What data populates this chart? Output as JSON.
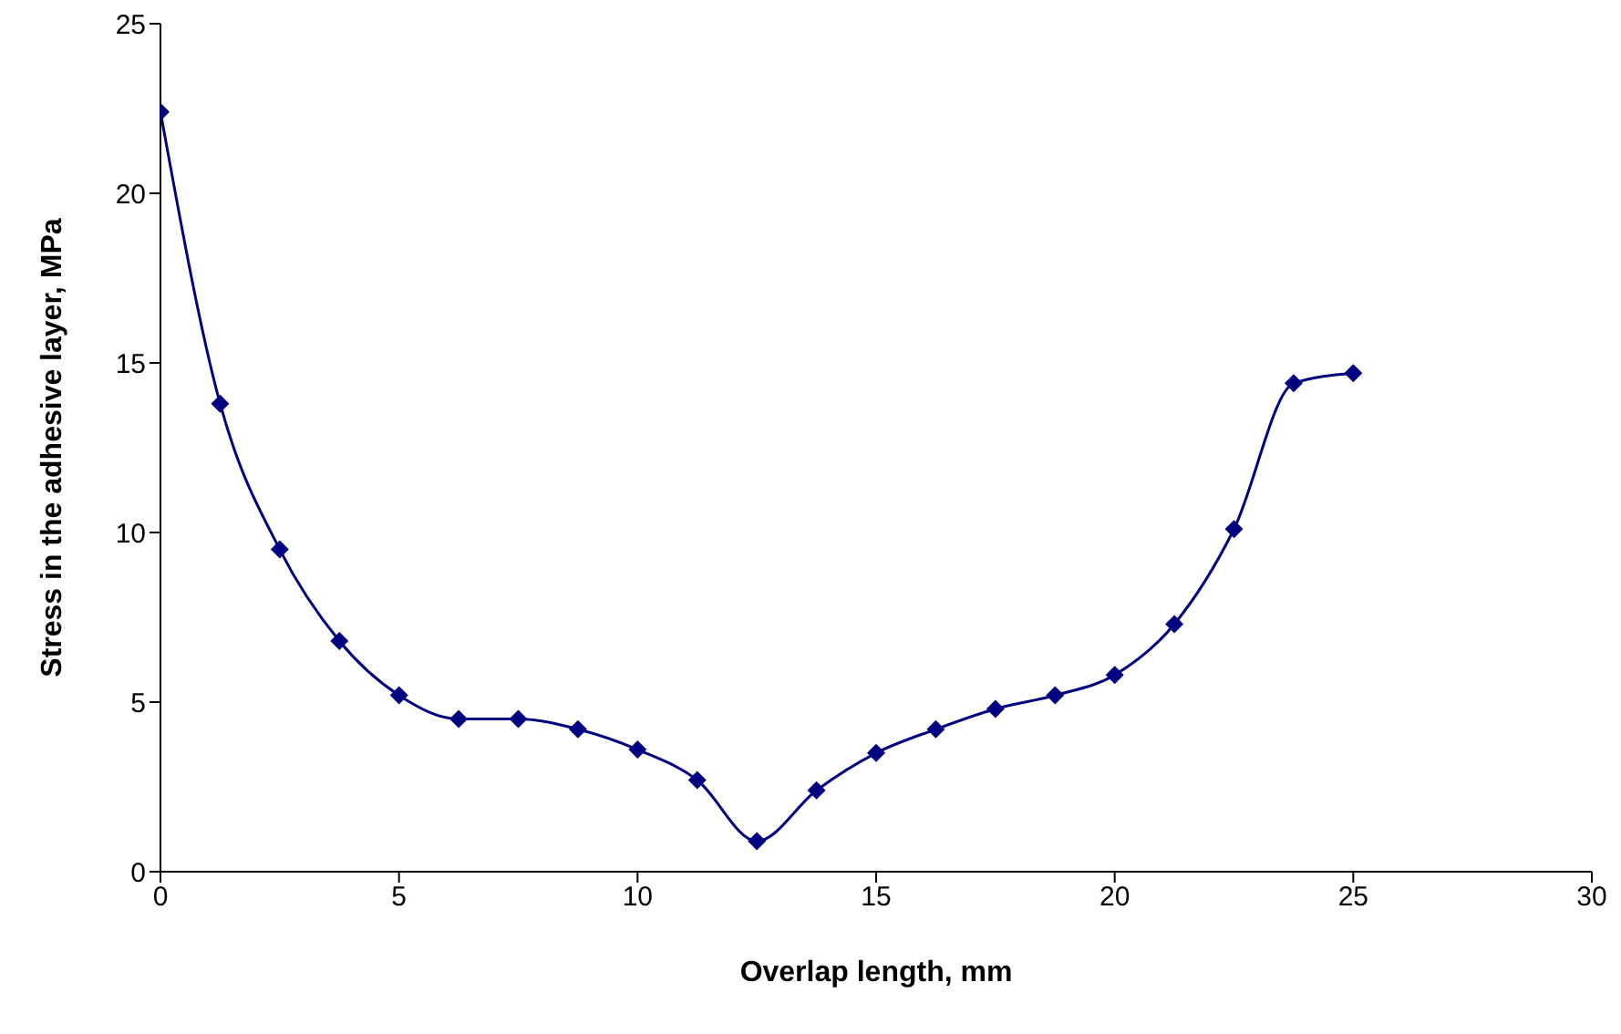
{
  "chart_data": {
    "type": "line",
    "xlabel": "Overlap length, mm",
    "ylabel": "Stress in the adhesive layer, MPa",
    "x": [
      0,
      1.25,
      2.5,
      3.75,
      5,
      6.25,
      7.5,
      8.75,
      10,
      11.25,
      12.5,
      13.75,
      15,
      16.25,
      17.5,
      18.75,
      20,
      21.25,
      22.5,
      23.75,
      25
    ],
    "series": [
      {
        "color": "#000080",
        "values": [
          22.4,
          13.8,
          9.5,
          6.8,
          5.2,
          4.5,
          4.5,
          4.2,
          3.6,
          2.7,
          0.9,
          2.4,
          3.5,
          4.2,
          4.8,
          5.2,
          5.8,
          7.3,
          10.1,
          14.4,
          14.7
        ]
      }
    ],
    "xlim": [
      0,
      30
    ],
    "xticks": [
      0,
      5,
      10,
      15,
      20,
      25,
      30
    ],
    "ylim": [
      0,
      25
    ],
    "yticks": [
      0,
      5,
      10,
      15,
      20,
      25
    ],
    "grid": false,
    "legend": false,
    "marker": "diamond",
    "line_style": "solid"
  }
}
